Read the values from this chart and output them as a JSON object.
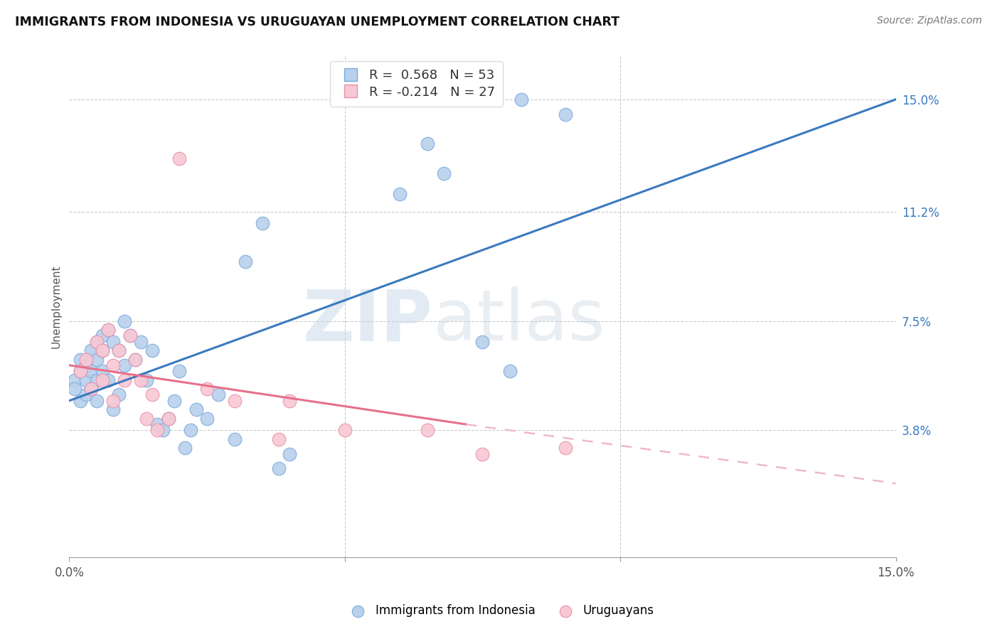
{
  "title": "IMMIGRANTS FROM INDONESIA VS URUGUAYAN UNEMPLOYMENT CORRELATION CHART",
  "source": "Source: ZipAtlas.com",
  "ylabel": "Unemployment",
  "ytick_labels": [
    "15.0%",
    "11.2%",
    "7.5%",
    "3.8%"
  ],
  "ytick_values": [
    0.15,
    0.112,
    0.075,
    0.038
  ],
  "xlim": [
    0.0,
    0.15
  ],
  "ylim": [
    -0.005,
    0.165
  ],
  "line1_color": "#3a7abf",
  "line2_color": "#e8708a",
  "line2_dashed_color": "#f0b8c8",
  "watermark_zip": "ZIP",
  "watermark_atlas": "atlas",
  "blue_points": [
    [
      0.001,
      0.055
    ],
    [
      0.001,
      0.052
    ],
    [
      0.002,
      0.058
    ],
    [
      0.002,
      0.062
    ],
    [
      0.002,
      0.048
    ],
    [
      0.003,
      0.055
    ],
    [
      0.003,
      0.06
    ],
    [
      0.003,
      0.05
    ],
    [
      0.004,
      0.065
    ],
    [
      0.004,
      0.058
    ],
    [
      0.004,
      0.052
    ],
    [
      0.005,
      0.068
    ],
    [
      0.005,
      0.062
    ],
    [
      0.005,
      0.055
    ],
    [
      0.005,
      0.048
    ],
    [
      0.006,
      0.07
    ],
    [
      0.006,
      0.065
    ],
    [
      0.006,
      0.058
    ],
    [
      0.007,
      0.072
    ],
    [
      0.007,
      0.055
    ],
    [
      0.008,
      0.068
    ],
    [
      0.008,
      0.045
    ],
    [
      0.009,
      0.065
    ],
    [
      0.009,
      0.05
    ],
    [
      0.01,
      0.075
    ],
    [
      0.01,
      0.06
    ],
    [
      0.011,
      0.07
    ],
    [
      0.012,
      0.062
    ],
    [
      0.013,
      0.068
    ],
    [
      0.014,
      0.055
    ],
    [
      0.015,
      0.065
    ],
    [
      0.016,
      0.04
    ],
    [
      0.017,
      0.038
    ],
    [
      0.018,
      0.042
    ],
    [
      0.019,
      0.048
    ],
    [
      0.02,
      0.058
    ],
    [
      0.021,
      0.032
    ],
    [
      0.022,
      0.038
    ],
    [
      0.023,
      0.045
    ],
    [
      0.025,
      0.042
    ],
    [
      0.027,
      0.05
    ],
    [
      0.03,
      0.035
    ],
    [
      0.032,
      0.095
    ],
    [
      0.035,
      0.108
    ],
    [
      0.038,
      0.025
    ],
    [
      0.04,
      0.03
    ],
    [
      0.06,
      0.118
    ],
    [
      0.065,
      0.135
    ],
    [
      0.068,
      0.125
    ],
    [
      0.075,
      0.068
    ],
    [
      0.08,
      0.058
    ],
    [
      0.082,
      0.15
    ],
    [
      0.09,
      0.145
    ]
  ],
  "pink_points": [
    [
      0.002,
      0.058
    ],
    [
      0.003,
      0.062
    ],
    [
      0.004,
      0.052
    ],
    [
      0.005,
      0.068
    ],
    [
      0.006,
      0.065
    ],
    [
      0.006,
      0.055
    ],
    [
      0.007,
      0.072
    ],
    [
      0.008,
      0.06
    ],
    [
      0.008,
      0.048
    ],
    [
      0.009,
      0.065
    ],
    [
      0.01,
      0.055
    ],
    [
      0.011,
      0.07
    ],
    [
      0.012,
      0.062
    ],
    [
      0.013,
      0.055
    ],
    [
      0.014,
      0.042
    ],
    [
      0.015,
      0.05
    ],
    [
      0.016,
      0.038
    ],
    [
      0.018,
      0.042
    ],
    [
      0.02,
      0.13
    ],
    [
      0.025,
      0.052
    ],
    [
      0.03,
      0.048
    ],
    [
      0.038,
      0.035
    ],
    [
      0.04,
      0.048
    ],
    [
      0.05,
      0.038
    ],
    [
      0.065,
      0.038
    ],
    [
      0.075,
      0.03
    ],
    [
      0.09,
      0.032
    ]
  ],
  "blue_line": [
    [
      0.0,
      0.048
    ],
    [
      0.15,
      0.15
    ]
  ],
  "pink_line_solid": [
    [
      0.0,
      0.06
    ],
    [
      0.072,
      0.04
    ]
  ],
  "pink_line_dashed": [
    [
      0.072,
      0.04
    ],
    [
      0.15,
      0.02
    ]
  ]
}
